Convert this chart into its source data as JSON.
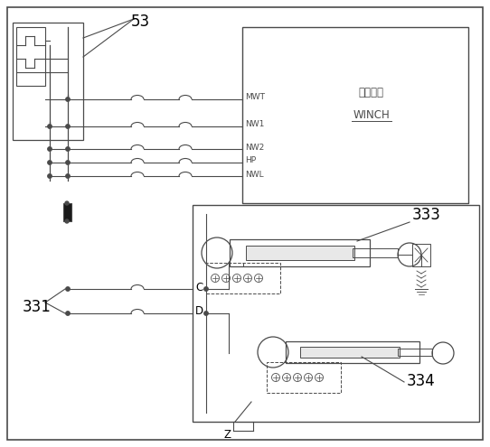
{
  "bg_color": "#ffffff",
  "line_color": "#4a4a4a",
  "winch_label_cn": "绩车系统",
  "winch_label_en": "WINCH",
  "channel_labels": [
    "MWT",
    "NW1",
    "NW2",
    "HP",
    "NWL"
  ],
  "label_53": "53",
  "label_331": "331",
  "label_333": "333",
  "label_334": "334",
  "label_C": "C",
  "label_D": "D",
  "label_Z": "Z",
  "font_large": 12,
  "font_small": 7,
  "font_med": 8.5
}
